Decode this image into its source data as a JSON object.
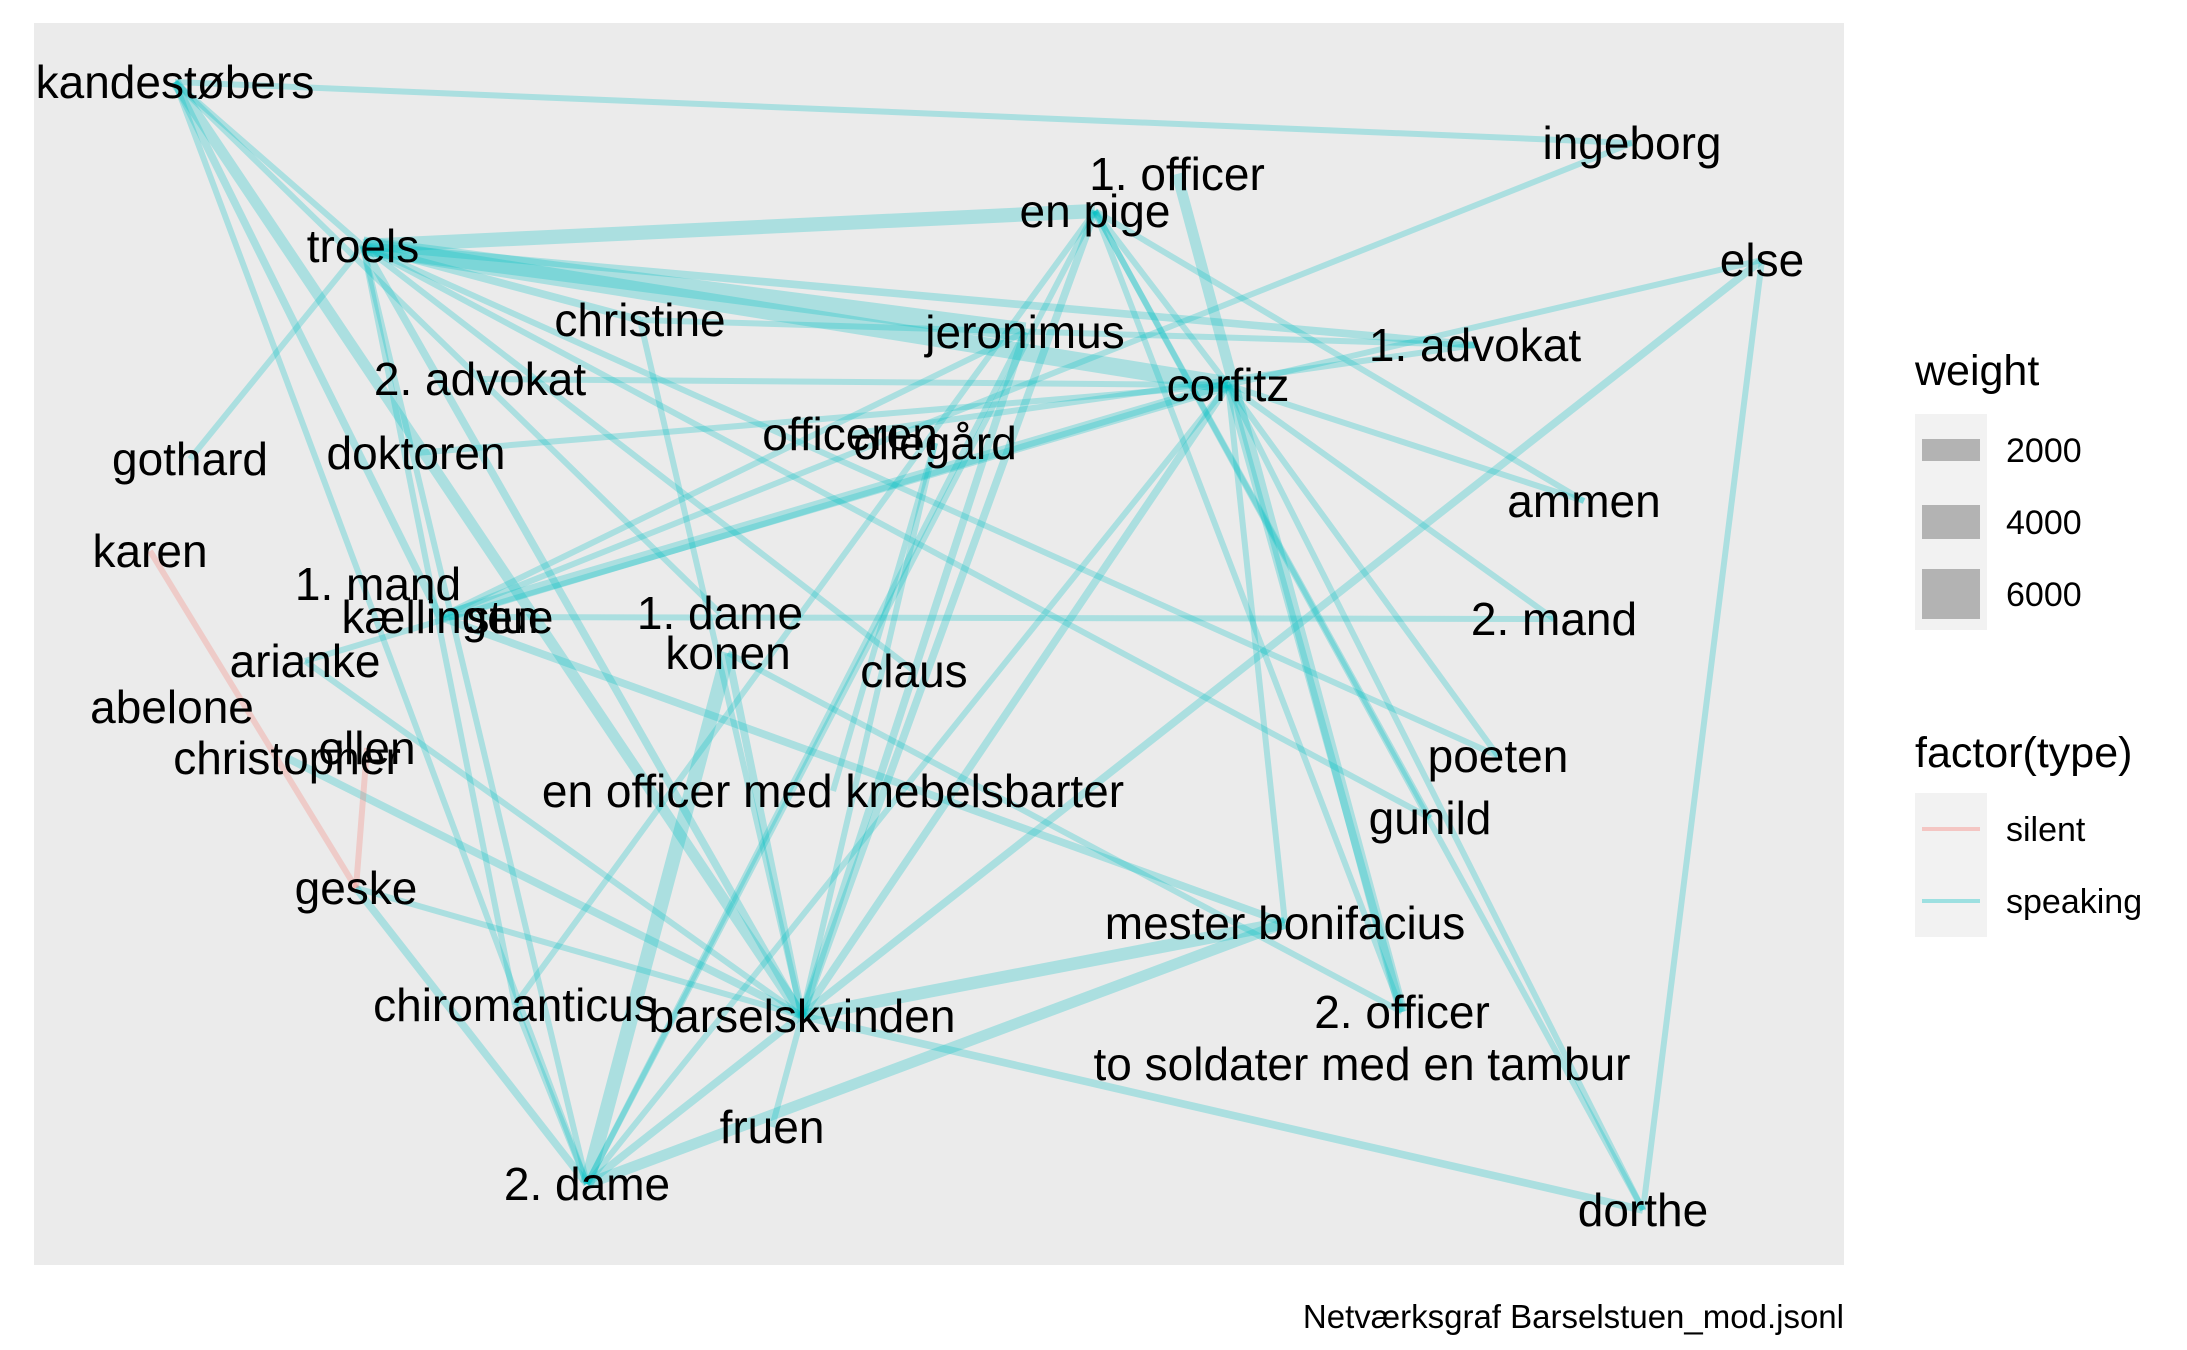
{
  "caption": "Netværksgraf Barselstuen_mod.jsonl",
  "colors": {
    "panel": "#EBEBEB",
    "speaking": "#00BFC4",
    "silent": "#F8766D",
    "legend_key_bg": "#F2F2F2",
    "legend_swatch": "#B3B3B3"
  },
  "legend": {
    "weight": {
      "title": "weight",
      "items": [
        {
          "label": "2000",
          "value": 2000
        },
        {
          "label": "4000",
          "value": 4000
        },
        {
          "label": "6000",
          "value": 6000
        }
      ]
    },
    "type": {
      "title": "factor(type)",
      "items": [
        {
          "label": "silent",
          "color": "#F8766D"
        },
        {
          "label": "speaking",
          "color": "#00BFC4"
        }
      ]
    }
  },
  "nodes": [
    {
      "id": "kandestobers",
      "label": "kandestøbers"
    },
    {
      "id": "ingeborg",
      "label": "ingeborg"
    },
    {
      "id": "officer1",
      "label": "1. officer"
    },
    {
      "id": "enpige",
      "label": "en pige"
    },
    {
      "id": "troels",
      "label": "troels"
    },
    {
      "id": "else",
      "label": "else"
    },
    {
      "id": "christine",
      "label": "christine"
    },
    {
      "id": "jeronimus",
      "label": "jeronimus"
    },
    {
      "id": "advokat1",
      "label": "1. advokat"
    },
    {
      "id": "advokat2",
      "label": "2. advokat"
    },
    {
      "id": "corfitz",
      "label": "corfitz"
    },
    {
      "id": "gothard",
      "label": "gothard"
    },
    {
      "id": "doktoren",
      "label": "doktoren"
    },
    {
      "id": "officeren",
      "label": "officeren"
    },
    {
      "id": "olegaard",
      "label": "ollegård"
    },
    {
      "id": "ammen",
      "label": "ammen"
    },
    {
      "id": "karen",
      "label": "karen"
    },
    {
      "id": "mand1",
      "label": "1. mand"
    },
    {
      "id": "kaellingen",
      "label": "kællingen"
    },
    {
      "id": "stue",
      "label": "stue"
    },
    {
      "id": "dame1",
      "label": "1. dame"
    },
    {
      "id": "mand2",
      "label": "2. mand"
    },
    {
      "id": "konen",
      "label": "konen"
    },
    {
      "id": "arianke",
      "label": "arianke"
    },
    {
      "id": "claus",
      "label": "claus"
    },
    {
      "id": "abelone",
      "label": "abelone"
    },
    {
      "id": "christopher",
      "label": "christopher"
    },
    {
      "id": "ellen",
      "label": "ellen"
    },
    {
      "id": "poeten",
      "label": "poeten"
    },
    {
      "id": "knebelsbarter",
      "label": "en officer med knebelsbarter"
    },
    {
      "id": "gunild",
      "label": "gunild"
    },
    {
      "id": "geske",
      "label": "geske"
    },
    {
      "id": "bonifacius",
      "label": "mester bonifacius"
    },
    {
      "id": "chiromanticus",
      "label": "chiromanticus"
    },
    {
      "id": "barselskvinden",
      "label": "barselskvinden"
    },
    {
      "id": "officer2",
      "label": "2. officer"
    },
    {
      "id": "soldater",
      "label": "to soldater med en tambur"
    },
    {
      "id": "fruen",
      "label": "fruen"
    },
    {
      "id": "dame2",
      "label": "2. dame"
    },
    {
      "id": "dorthe",
      "label": "dorthe"
    }
  ],
  "edges": [
    {
      "source": "kandestobers",
      "target": "ingeborg",
      "type": "speaking",
      "weight": 1500
    },
    {
      "source": "kandestobers",
      "target": "troels",
      "type": "speaking",
      "weight": 1500
    },
    {
      "source": "kandestobers",
      "target": "barselskvinden",
      "type": "speaking",
      "weight": 3000
    },
    {
      "source": "kandestobers",
      "target": "kaellingen",
      "type": "speaking",
      "weight": 2000
    },
    {
      "source": "kandestobers",
      "target": "dame2",
      "type": "speaking",
      "weight": 1500
    },
    {
      "source": "kandestobers",
      "target": "dame1",
      "type": "speaking",
      "weight": 1500
    },
    {
      "source": "troels",
      "target": "enpige",
      "type": "speaking",
      "weight": 4000
    },
    {
      "source": "troels",
      "target": "jeronimus",
      "type": "speaking",
      "weight": 5500
    },
    {
      "source": "troels",
      "target": "corfitz",
      "type": "speaking",
      "weight": 5000
    },
    {
      "source": "troels",
      "target": "advokat1",
      "type": "speaking",
      "weight": 2000
    },
    {
      "source": "troels",
      "target": "christine",
      "type": "speaking",
      "weight": 2000
    },
    {
      "source": "troels",
      "target": "gothard",
      "type": "speaking",
      "weight": 1500
    },
    {
      "source": "troels",
      "target": "barselskvinden",
      "type": "speaking",
      "weight": 2000
    },
    {
      "source": "troels",
      "target": "chiromanticus",
      "type": "speaking",
      "weight": 1500
    },
    {
      "source": "troels",
      "target": "poeten",
      "type": "speaking",
      "weight": 1500
    },
    {
      "source": "troels",
      "target": "gunild",
      "type": "speaking",
      "weight": 1500
    },
    {
      "source": "troels",
      "target": "claus",
      "type": "speaking",
      "weight": 1500
    },
    {
      "source": "troels",
      "target": "dame2",
      "type": "speaking",
      "weight": 1500
    },
    {
      "source": "enpige",
      "target": "barselskvinden",
      "type": "speaking",
      "weight": 2000
    },
    {
      "source": "enpige",
      "target": "corfitz",
      "type": "speaking",
      "weight": 1500
    },
    {
      "source": "enpige",
      "target": "gunild",
      "type": "speaking",
      "weight": 1500
    },
    {
      "source": "enpige",
      "target": "ammen",
      "type": "speaking",
      "weight": 1500
    },
    {
      "source": "enpige",
      "target": "dorthe",
      "type": "speaking",
      "weight": 1500
    },
    {
      "source": "enpige",
      "target": "chiromanticus",
      "type": "speaking",
      "weight": 1500
    },
    {
      "source": "enpige",
      "target": "dame2",
      "type": "speaking",
      "weight": 1500
    },
    {
      "source": "enpige",
      "target": "officer2",
      "type": "speaking",
      "weight": 1500
    },
    {
      "source": "officer1",
      "target": "officer2",
      "type": "speaking",
      "weight": 3000
    },
    {
      "source": "ingeborg",
      "target": "kaellingen",
      "type": "speaking",
      "weight": 1500
    },
    {
      "source": "else",
      "target": "dorthe",
      "type": "speaking",
      "weight": 1500
    },
    {
      "source": "else",
      "target": "dame2",
      "type": "speaking",
      "weight": 2000
    },
    {
      "source": "else",
      "target": "corfitz",
      "type": "speaking",
      "weight": 1500
    },
    {
      "source": "corfitz",
      "target": "kaellingen",
      "type": "speaking",
      "weight": 3000
    },
    {
      "source": "corfitz",
      "target": "barselskvinden",
      "type": "speaking",
      "weight": 2000
    },
    {
      "source": "corfitz",
      "target": "bonifacius",
      "type": "speaking",
      "weight": 1500
    },
    {
      "source": "corfitz",
      "target": "officer2",
      "type": "speaking",
      "weight": 2000
    },
    {
      "source": "corfitz",
      "target": "doktoren",
      "type": "speaking",
      "weight": 1500
    },
    {
      "source": "corfitz",
      "target": "advokat2",
      "type": "speaking",
      "weight": 1500
    },
    {
      "source": "corfitz",
      "target": "arianke",
      "type": "speaking",
      "weight": 1500
    },
    {
      "source": "corfitz",
      "target": "dame2",
      "type": "speaking",
      "weight": 1500
    },
    {
      "source": "corfitz",
      "target": "mand2",
      "type": "speaking",
      "weight": 1500
    },
    {
      "source": "corfitz",
      "target": "ammen",
      "type": "speaking",
      "weight": 1500
    },
    {
      "source": "corfitz",
      "target": "poeten",
      "type": "speaking",
      "weight": 1500
    },
    {
      "source": "corfitz",
      "target": "dorthe",
      "type": "speaking",
      "weight": 1500
    },
    {
      "source": "advokat1",
      "target": "christine",
      "type": "speaking",
      "weight": 1500
    },
    {
      "source": "advokat1",
      "target": "officeren",
      "type": "speaking",
      "weight": 1500
    },
    {
      "source": "jeronimus",
      "target": "barselskvinden",
      "type": "speaking",
      "weight": 2000
    },
    {
      "source": "jeronimus",
      "target": "dame2",
      "type": "speaking",
      "weight": 1500
    },
    {
      "source": "jeronimus",
      "target": "kaellingen",
      "type": "speaking",
      "weight": 1500
    },
    {
      "source": "olegaard",
      "target": "barselskvinden",
      "type": "speaking",
      "weight": 1500
    },
    {
      "source": "olegaard",
      "target": "knebelsbarter",
      "type": "speaking",
      "weight": 1500
    },
    {
      "source": "christine",
      "target": "barselskvinden",
      "type": "speaking",
      "weight": 1500
    },
    {
      "source": "kaellingen",
      "target": "mand2",
      "type": "speaking",
      "weight": 1500
    },
    {
      "source": "kaellingen",
      "target": "bonifacius",
      "type": "speaking",
      "weight": 2000
    },
    {
      "source": "konen",
      "target": "dame2",
      "type": "speaking",
      "weight": 4000
    },
    {
      "source": "konen",
      "target": "barselskvinden",
      "type": "speaking",
      "weight": 2000
    },
    {
      "source": "konen",
      "target": "officer2",
      "type": "speaking",
      "weight": 1500
    },
    {
      "source": "barselskvinden",
      "target": "bonifacius",
      "type": "speaking",
      "weight": 3500
    },
    {
      "source": "barselskvinden",
      "target": "dorthe",
      "type": "speaking",
      "weight": 2000
    },
    {
      "source": "barselskvinden",
      "target": "fruen",
      "type": "speaking",
      "weight": 1500
    },
    {
      "source": "barselskvinden",
      "target": "christopher",
      "type": "speaking",
      "weight": 2000
    },
    {
      "source": "barselskvinden",
      "target": "arianke",
      "type": "speaking",
      "weight": 1500
    },
    {
      "source": "barselskvinden",
      "target": "geske",
      "type": "speaking",
      "weight": 1500
    },
    {
      "source": "dame2",
      "target": "bonifacius",
      "type": "speaking",
      "weight": 3000
    },
    {
      "source": "dame2",
      "target": "chiromanticus",
      "type": "speaking",
      "weight": 1500
    },
    {
      "source": "dame2",
      "target": "geske",
      "type": "speaking",
      "weight": 2000
    },
    {
      "source": "karen",
      "target": "geske",
      "type": "silent",
      "weight": 1500
    },
    {
      "source": "ellen",
      "target": "geske",
      "type": "silent",
      "weight": 1500
    }
  ]
}
